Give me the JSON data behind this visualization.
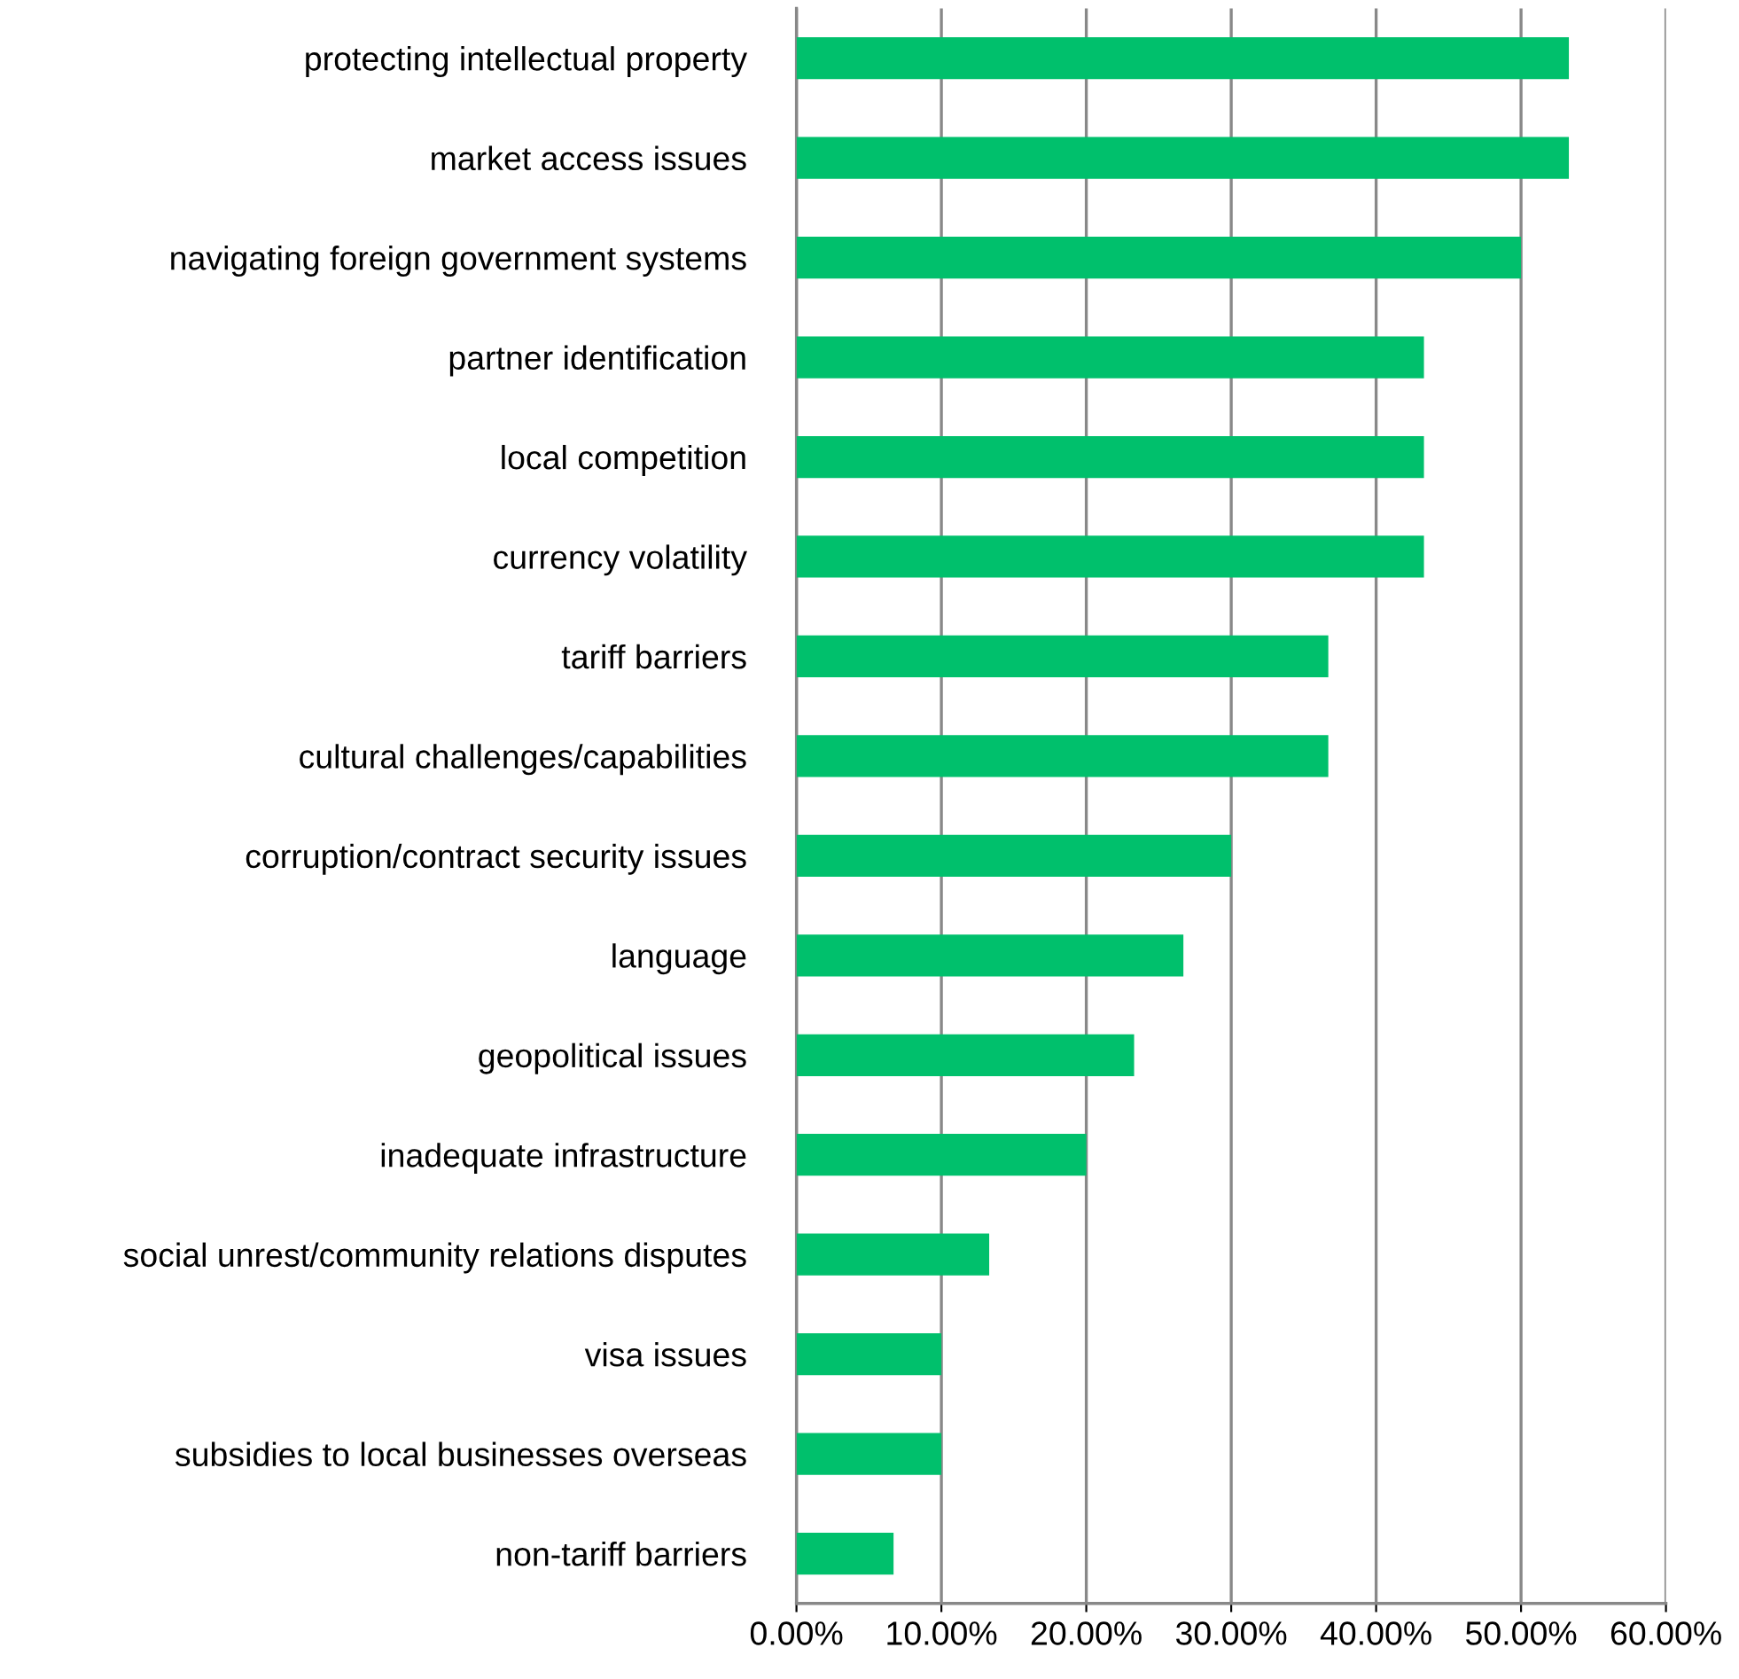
{
  "chart_data": {
    "type": "bar",
    "orientation": "horizontal",
    "categories": [
      "protecting intellectual property",
      "market access issues",
      "navigating foreign government systems",
      "partner identification",
      "local competition",
      "currency volatility",
      "tariff barriers",
      "cultural challenges/capabilities",
      "corruption/contract security issues",
      "language",
      "geopolitical issues",
      "inadequate infrastructure",
      "social unrest/community relations disputes",
      "visa issues",
      "subsidies to local businesses overseas",
      "non-tariff barriers"
    ],
    "values": [
      53.3,
      53.3,
      50.0,
      43.3,
      43.3,
      43.3,
      36.7,
      36.7,
      30.0,
      26.7,
      23.3,
      20.0,
      13.3,
      10.0,
      10.0,
      6.7
    ],
    "color": "#00c06c",
    "xlim": [
      0,
      60
    ],
    "xticks": [
      {
        "value": 0,
        "label": "0.00%"
      },
      {
        "value": 10,
        "label": "10.00%"
      },
      {
        "value": 20,
        "label": "20.00%"
      },
      {
        "value": 30,
        "label": "30.00%"
      },
      {
        "value": 40,
        "label": "40.00%"
      },
      {
        "value": 50,
        "label": "50.00%"
      },
      {
        "value": 60,
        "label": "60.00%"
      }
    ],
    "grid": "x"
  }
}
